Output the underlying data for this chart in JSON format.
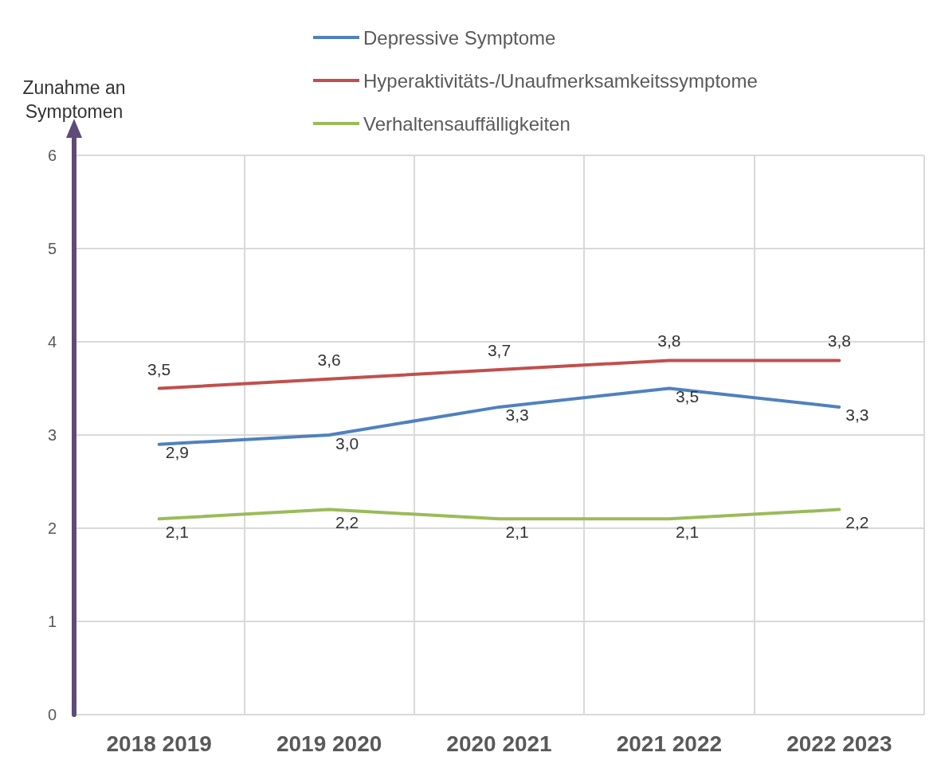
{
  "chart_data": {
    "type": "line",
    "ylabel": "Zunahme an Symptomen",
    "categories": [
      "2018 2019",
      "2019 2020",
      "2020 2021",
      "2021 2022",
      "2022 2023"
    ],
    "series": [
      {
        "name": "Depressive Symptome",
        "color": "#4f81bd",
        "values": [
          2.9,
          3.0,
          3.3,
          3.5,
          3.3
        ],
        "value_labels": [
          "2,9",
          "3,0",
          "3,3",
          "3,5",
          "3,3"
        ]
      },
      {
        "name": "Hyperaktivitäts-/Unaufmerksamkeitssymptome",
        "color": "#c0504d",
        "values": [
          3.5,
          3.6,
          3.7,
          3.8,
          3.8
        ],
        "value_labels": [
          "3,5",
          "3,6",
          "3,7",
          "3,8",
          "3,8"
        ]
      },
      {
        "name": "Verhaltensauffälligkeiten",
        "color": "#9bbb59",
        "values": [
          2.1,
          2.2,
          2.1,
          2.1,
          2.2
        ],
        "value_labels": [
          "2,1",
          "2,2",
          "2,1",
          "2,1",
          "2,2"
        ]
      }
    ],
    "ylim": [
      0,
      6
    ],
    "yticks": [
      0,
      1,
      2,
      3,
      4,
      5,
      6
    ],
    "grid": true,
    "legend": "top",
    "marker": "none",
    "line_style": "solid"
  }
}
